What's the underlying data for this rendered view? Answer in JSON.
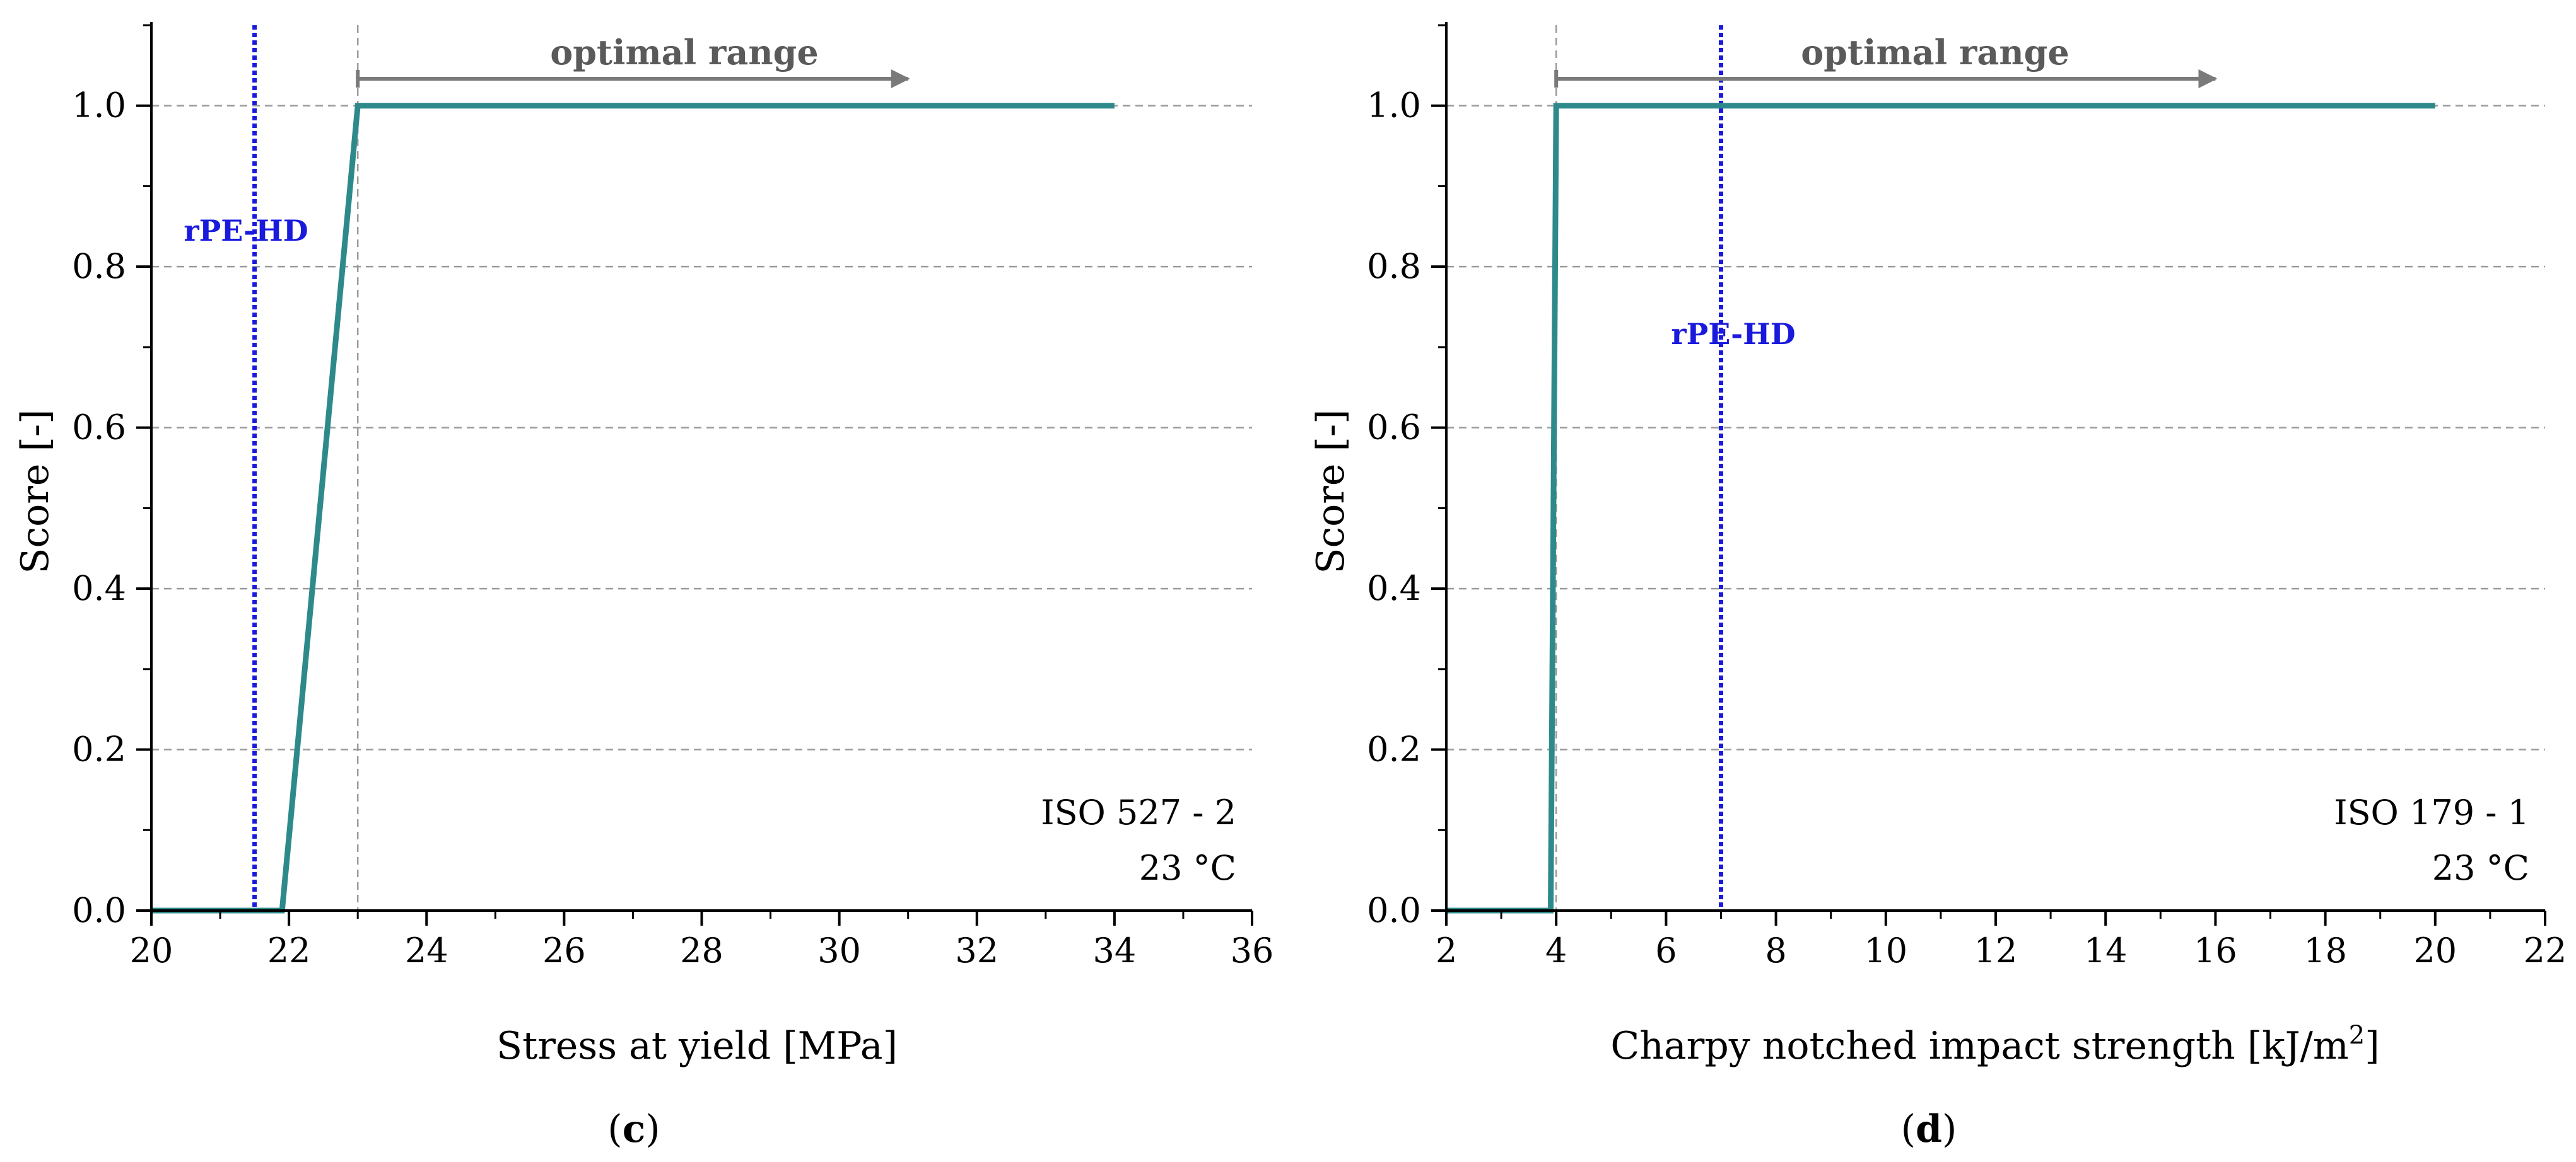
{
  "chart_data": [
    {
      "type": "line",
      "panel_label": "c",
      "xlabel": "Stress at yield [MPa]",
      "ylabel": "Score [-]",
      "xlim": [
        20,
        36
      ],
      "ylim": [
        0,
        1.1
      ],
      "x_ticks": [
        20,
        22,
        24,
        26,
        28,
        30,
        32,
        34,
        36
      ],
      "x_tick_labels": [
        "20",
        "22",
        "24",
        "26",
        "28",
        "30",
        "32",
        "34",
        "36"
      ],
      "y_ticks": [
        0,
        0.2,
        0.4,
        0.6,
        0.8,
        1.0
      ],
      "y_tick_labels": [
        "0.0",
        "0.2",
        "0.4",
        "0.6",
        "0.8",
        "1.0"
      ],
      "grid": "horizontal dashed",
      "series": [
        {
          "name": "Score",
          "x": [
            20,
            21.9,
            23,
            34
          ],
          "y": [
            0,
            0,
            1,
            1
          ]
        }
      ],
      "reference": {
        "label": "rPE-HD",
        "x": 21.5
      },
      "threshold_x": 23,
      "optimal_range": {
        "label": "optimal range",
        "start": 23,
        "end": 31
      },
      "annotations": [
        "ISO 527 - 2",
        "23 °C"
      ]
    },
    {
      "type": "line",
      "panel_label": "d",
      "xlabel_main": "Charpy notched impact strength [kJ/m",
      "xlabel_sup": "2",
      "xlabel_end": "]",
      "ylabel": "Score [-]",
      "xlim": [
        2,
        22
      ],
      "ylim": [
        0,
        1.1
      ],
      "x_ticks": [
        2,
        4,
        6,
        8,
        10,
        12,
        14,
        16,
        18,
        20,
        22
      ],
      "x_tick_labels": [
        "2",
        "4",
        "6",
        "8",
        "10",
        "12",
        "14",
        "16",
        "18",
        "20",
        "22"
      ],
      "y_ticks": [
        0,
        0.2,
        0.4,
        0.6,
        0.8,
        1.0
      ],
      "y_tick_labels": [
        "0.0",
        "0.2",
        "0.4",
        "0.6",
        "0.8",
        "1.0"
      ],
      "grid": "horizontal dashed",
      "series": [
        {
          "name": "Score",
          "x": [
            2,
            3.9,
            4,
            20
          ],
          "y": [
            0,
            0,
            1,
            1
          ]
        }
      ],
      "reference": {
        "label": "rPE-HD",
        "x": 7
      },
      "threshold_x": 4,
      "optimal_range": {
        "label": "optimal range",
        "start": 4,
        "end": 16
      },
      "annotations": [
        "ISO 179 - 1",
        "23 °C"
      ]
    }
  ],
  "colors": {
    "curve": "#2e8a8a",
    "reference": "#1a1adc",
    "arrow": "#7a7a7a",
    "grid": "#9a9a9a",
    "axis": "#000000"
  }
}
